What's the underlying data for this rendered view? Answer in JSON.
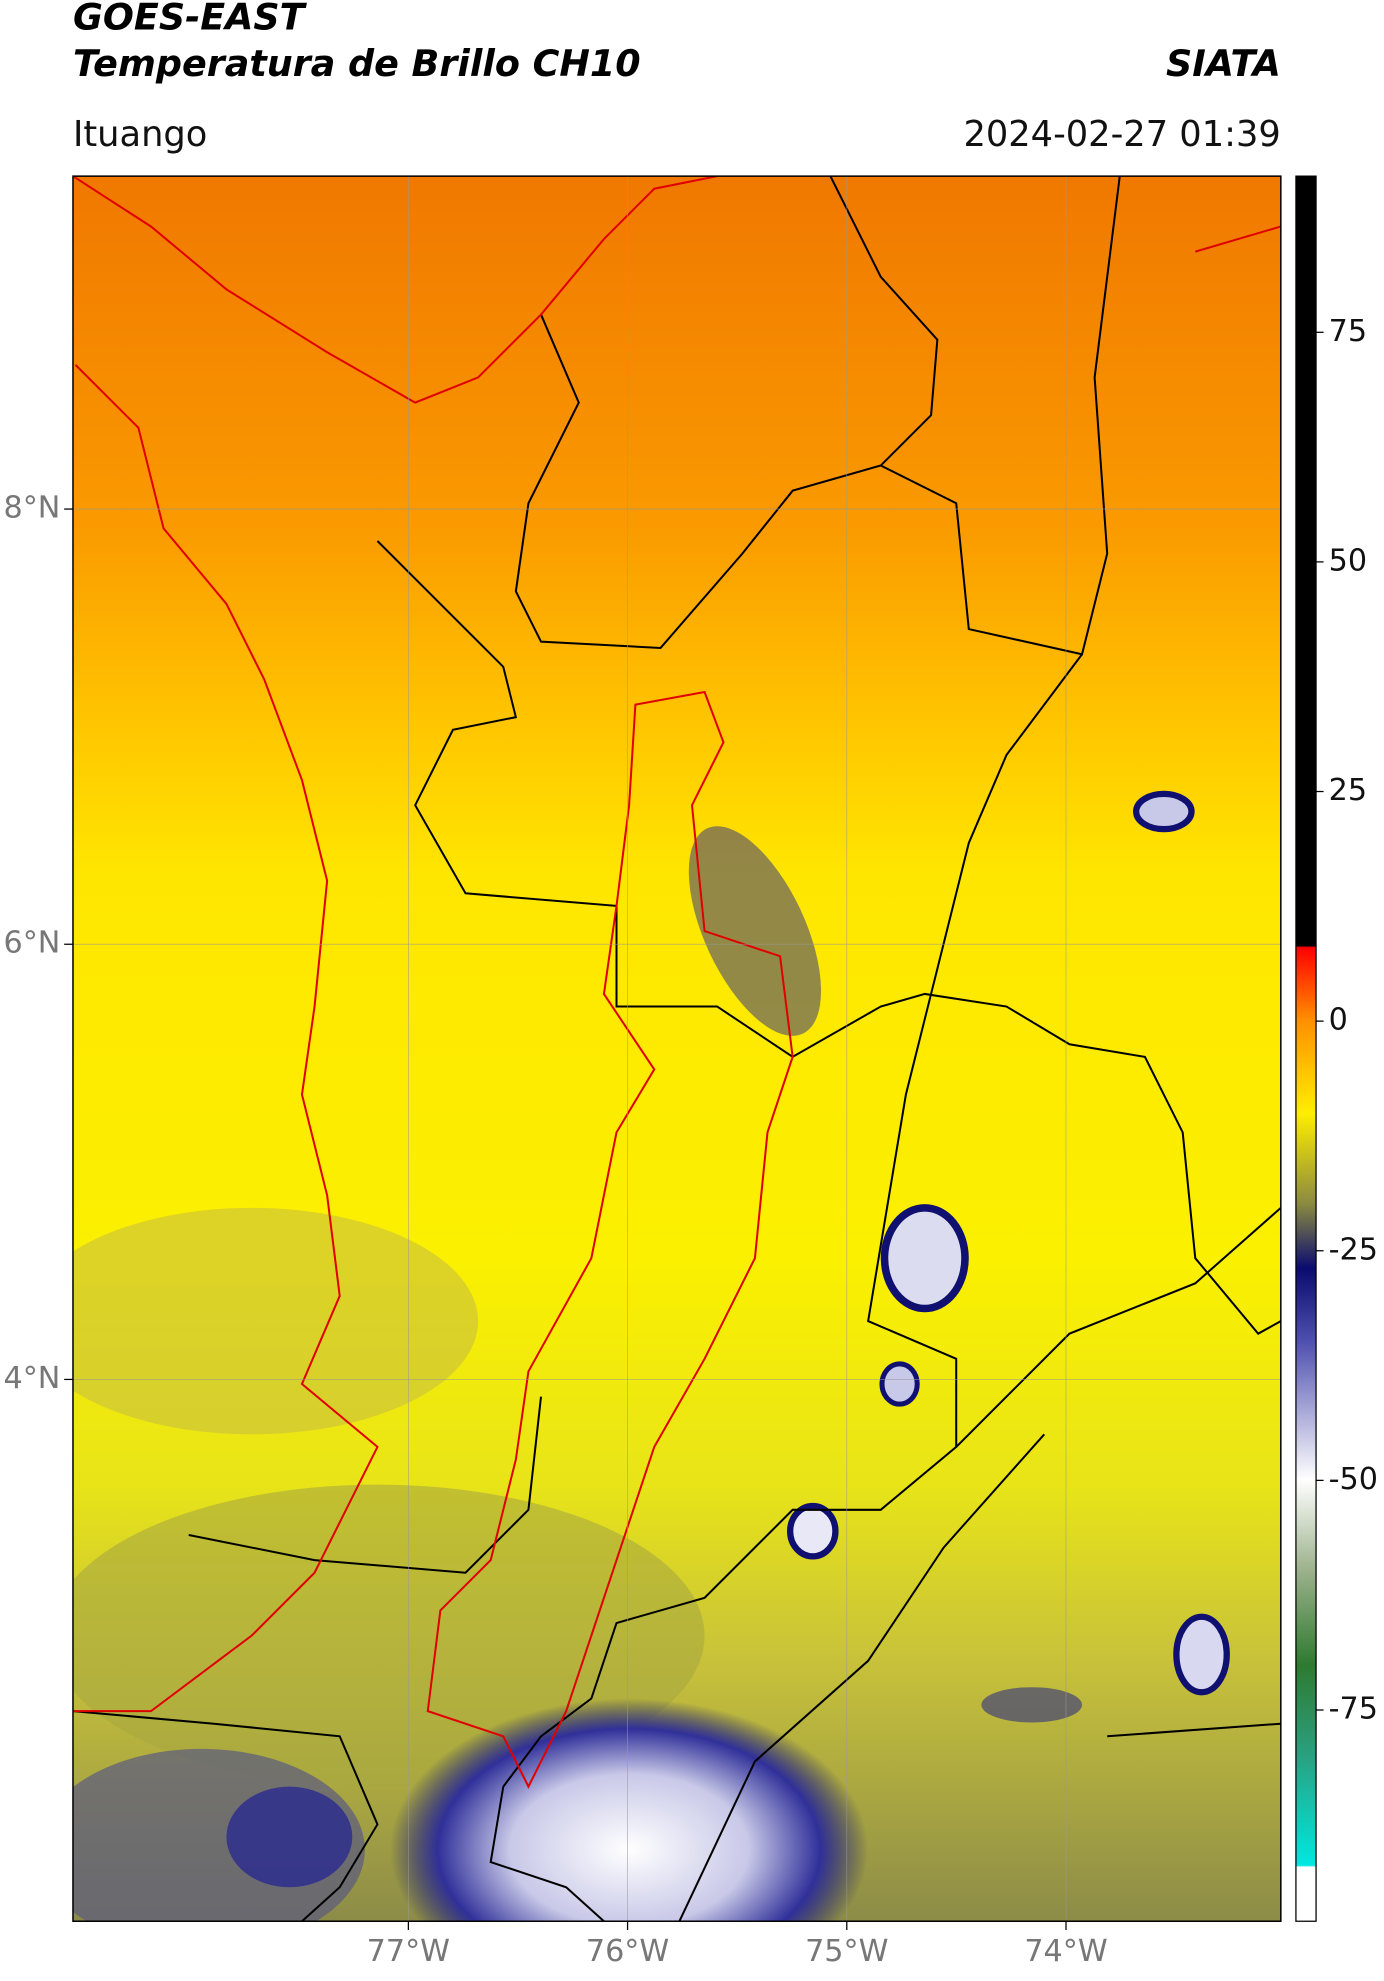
{
  "header": {
    "title": "GOES-EAST",
    "subtitle": "Temperatura de Brillo CH10",
    "source": "SIATA",
    "region": "Ituango",
    "timestamp": "2024-02-27 01:39"
  },
  "chart_data": {
    "type": "map",
    "xlim": [
      -78.53,
      -73.02
    ],
    "ylim": [
      1.51,
      9.53
    ],
    "xticks": [
      {
        "value": -77,
        "label": "77°W"
      },
      {
        "value": -76,
        "label": "76°W"
      },
      {
        "value": -75,
        "label": "75°W"
      },
      {
        "value": -74,
        "label": "74°W"
      }
    ],
    "yticks": [
      {
        "value": 4,
        "label": "4°N"
      },
      {
        "value": 6,
        "label": "6°N"
      },
      {
        "value": 8,
        "label": "8°N"
      }
    ],
    "grid": true,
    "colorbar": {
      "lim": [
        -98,
        92
      ],
      "ticks": [
        -75,
        -50,
        -25,
        0,
        25,
        50,
        75
      ]
    }
  }
}
